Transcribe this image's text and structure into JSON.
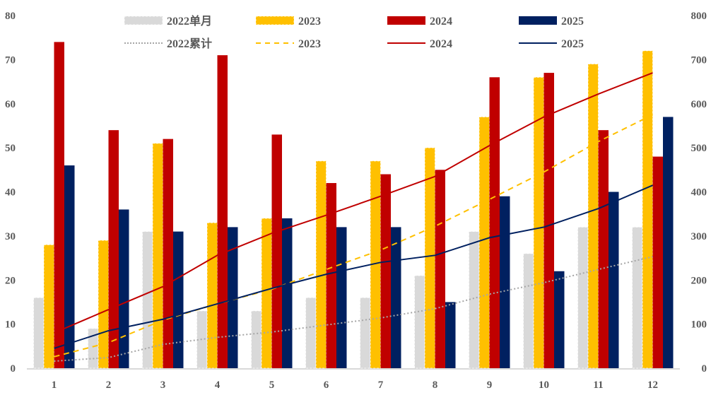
{
  "chart_data": {
    "type": "bar+line",
    "categories": [
      "1",
      "2",
      "3",
      "4",
      "5",
      "6",
      "7",
      "8",
      "9",
      "10",
      "11",
      "12"
    ],
    "left_axis": {
      "ylim": [
        0,
        80
      ],
      "ticks": [
        0,
        10,
        20,
        30,
        40,
        50,
        60,
        70,
        80
      ]
    },
    "right_axis": {
      "ylim": [
        0,
        800
      ],
      "ticks": [
        0,
        100,
        200,
        300,
        400,
        500,
        600,
        700,
        800
      ]
    },
    "grid": false,
    "legend_position": "top",
    "bar_series": [
      {
        "name": "2022单月",
        "color": "#d9d9d9",
        "values": [
          16,
          9,
          31,
          13,
          13,
          16,
          16,
          21,
          31,
          26,
          32,
          32
        ]
      },
      {
        "name": "2023",
        "color": "#ffc000",
        "values": [
          28,
          29,
          51,
          33,
          34,
          47,
          47,
          50,
          57,
          66,
          69,
          72
        ]
      },
      {
        "name": "2024",
        "color": "#c00000",
        "values": [
          74,
          54,
          52,
          71,
          53,
          42,
          44,
          45,
          66,
          67,
          54,
          48
        ]
      },
      {
        "name": "2025",
        "color": "#002060",
        "values": [
          46,
          36,
          31,
          32,
          34,
          32,
          32,
          15,
          39,
          22,
          40,
          57
        ]
      }
    ],
    "line_series": [
      {
        "name": "2022累计",
        "color": "#a6a6a6",
        "style": "dotted",
        "axis": "right",
        "values": [
          16,
          24,
          54,
          70,
          82,
          98,
          114,
          135,
          168,
          194,
          224,
          253
        ]
      },
      {
        "name": "2023",
        "color": "#ffc000",
        "style": "dashed",
        "axis": "right",
        "values": [
          26,
          58,
          109,
          146,
          179,
          224,
          268,
          322,
          383,
          445,
          514,
          575
        ]
      },
      {
        "name": "2024",
        "color": "#c00000",
        "style": "solid",
        "axis": "right",
        "values": [
          80,
          133,
          185,
          256,
          306,
          347,
          390,
          435,
          505,
          570,
          622,
          670
        ]
      },
      {
        "name": "2025",
        "color": "#002060",
        "style": "solid",
        "axis": "right",
        "values": [
          45,
          85,
          111,
          146,
          181,
          213,
          240,
          256,
          296,
          320,
          362,
          415
        ]
      }
    ]
  }
}
